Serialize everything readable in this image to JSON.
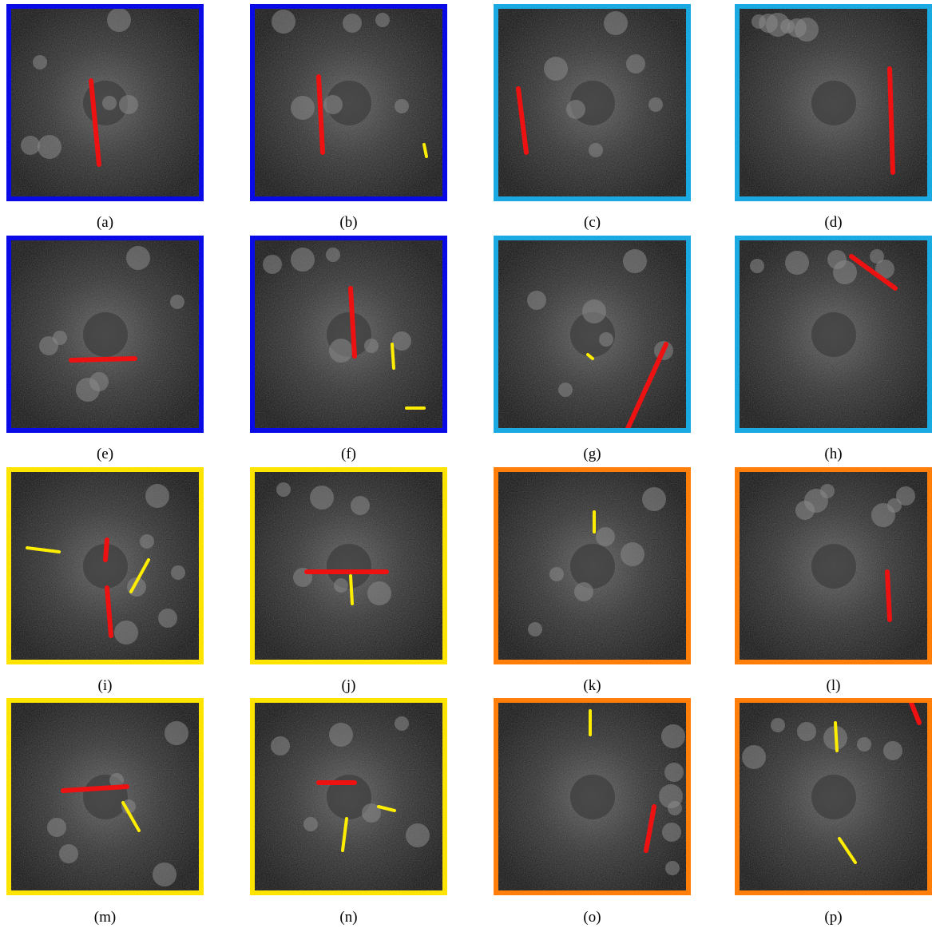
{
  "captions": [
    "(a)",
    "(b)",
    "(c)",
    "(d)",
    "(e)",
    "(f)",
    "(g)",
    "(h)",
    "(i)",
    "(j)",
    "(k)",
    "(l)",
    "(m)",
    "(n)",
    "(o)",
    "(p)"
  ]
}
